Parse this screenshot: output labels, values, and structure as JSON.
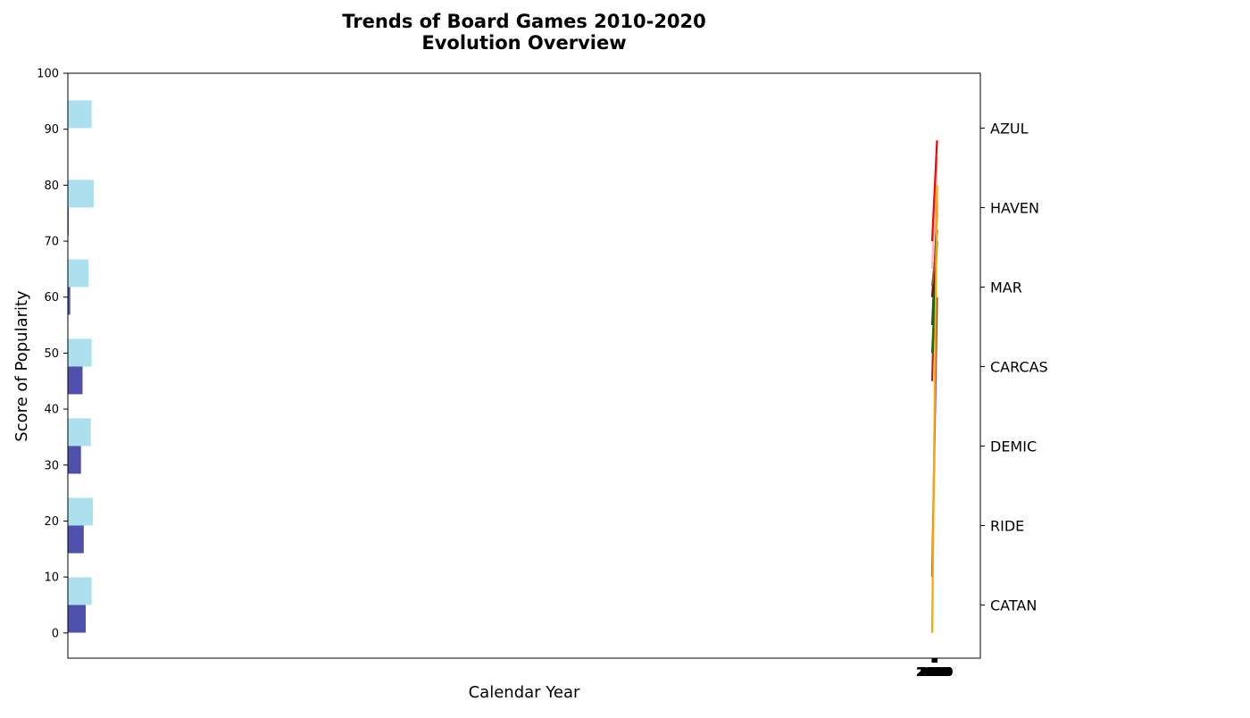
{
  "chart_data": {
    "type": "bar+line",
    "title_line1": "Trends of Board Games 2010-2020",
    "title_line2": "Evolution Overview",
    "xlabel": "Calendar Year",
    "ylabel": "Score of Popularity",
    "ylim": [
      -4.5,
      100
    ],
    "yticks": [
      0,
      10,
      20,
      30,
      40,
      50,
      60,
      70,
      80,
      90,
      100
    ],
    "grid": false,
    "right_axis_categories": [
      "CATAN",
      "RIDE",
      "DEMIC",
      "CARCAS",
      "MAR",
      "HAVEN",
      "AZUL"
    ],
    "bar_groups": [
      {
        "category": "CATAN",
        "light": 6.0,
        "dark": 4.5
      },
      {
        "category": "RIDE",
        "light": 6.3,
        "dark": 4.0
      },
      {
        "category": "DEMIC",
        "light": 5.8,
        "dark": 3.3
      },
      {
        "category": "CARCAS",
        "light": 6.0,
        "dark": 3.7
      },
      {
        "category": "MAR",
        "light": 5.2,
        "dark": 0.6
      },
      {
        "category": "HAVEN",
        "light": 6.5,
        "dark": 0.2
      },
      {
        "category": "AZUL",
        "light": 6.0,
        "dark": 0.0
      }
    ],
    "bar_colors": {
      "light": "#ade0ee",
      "dark": "#4e50ab"
    },
    "x_tick_labels": [
      "2010",
      "2011",
      "2012",
      "2013",
      "2014",
      "2015",
      "2016",
      "2017",
      "2018",
      "2019",
      "2020"
    ],
    "lines": [
      {
        "color": "#8b3a62",
        "x": [
          2010,
          2020
        ],
        "y": [
          10,
          60
        ]
      },
      {
        "color": "#b22222",
        "x": [
          2010,
          2020
        ],
        "y": [
          45,
          77
        ]
      },
      {
        "color": "#008000",
        "x": [
          2010,
          2020
        ],
        "y": [
          50,
          70
        ]
      },
      {
        "color": "#2f4f2f",
        "x": [
          2010,
          2020
        ],
        "y": [
          55,
          75
        ]
      },
      {
        "color": "#8b0000",
        "x": [
          2010,
          2020
        ],
        "y": [
          60,
          72
        ]
      },
      {
        "color": "#a0522d",
        "x": [
          2010,
          2020
        ],
        "y": [
          62,
          70
        ]
      },
      {
        "color": "#ffb6c1",
        "x": [
          2010,
          2020
        ],
        "y": [
          65,
          85
        ]
      },
      {
        "color": "#ff0000",
        "x": [
          2010,
          2020
        ],
        "y": [
          70,
          88
        ]
      },
      {
        "color": "#ffa500",
        "x": [
          2010,
          2020
        ],
        "y": [
          0,
          80
        ]
      }
    ]
  }
}
